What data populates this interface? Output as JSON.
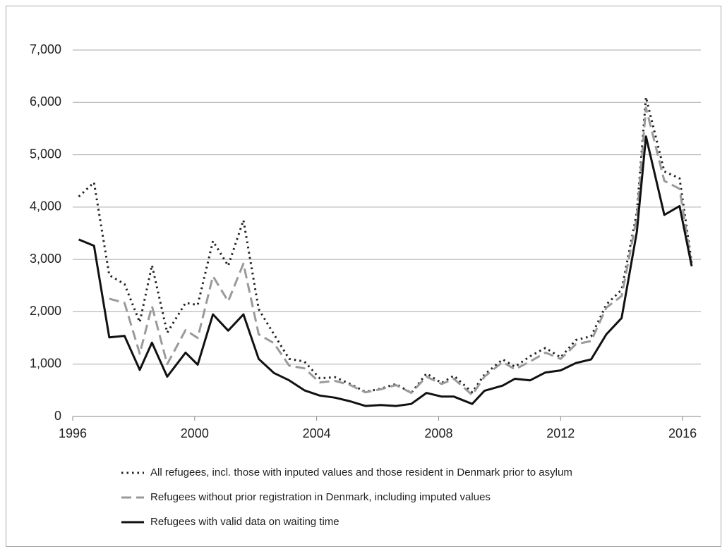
{
  "chart_data": {
    "type": "line",
    "x": [
      1996.2,
      1996.7,
      1997.2,
      1997.7,
      1998.2,
      1998.6,
      1999.1,
      1999.7,
      2000.1,
      2000.6,
      2001.1,
      2001.6,
      2002.1,
      2002.6,
      2003.1,
      2003.6,
      2004.1,
      2004.6,
      2005.1,
      2005.6,
      2006.1,
      2006.6,
      2007.1,
      2007.6,
      2008.1,
      2008.5,
      2009.1,
      2009.5,
      2010.1,
      2010.5,
      2011.0,
      2011.5,
      2012.0,
      2012.5,
      2013.0,
      2013.5,
      2014.0,
      2014.5,
      2014.8,
      2015.4,
      2015.9,
      2016.3
    ],
    "series": [
      {
        "name": "All refugees, incl. those with inputed values and those resident in Denmark prior to asylum",
        "color": "#222222",
        "dash": "dotted",
        "values": [
          4200,
          4470,
          2700,
          2530,
          1800,
          2890,
          1600,
          2170,
          2130,
          3350,
          2880,
          3750,
          2050,
          1570,
          1100,
          1050,
          730,
          750,
          620,
          470,
          530,
          620,
          450,
          820,
          640,
          780,
          460,
          800,
          1090,
          950,
          1150,
          1310,
          1130,
          1460,
          1530,
          2140,
          2420,
          3900,
          6100,
          4680,
          4550,
          2940
        ]
      },
      {
        "name": "Refugees without prior registration in Denmark, including imputed values",
        "color": "#9a9a9a",
        "dash": "dashed",
        "values": [
          null,
          null,
          2250,
          2170,
          1200,
          2110,
          1000,
          1650,
          1500,
          2680,
          2200,
          2920,
          1570,
          1400,
          970,
          920,
          650,
          680,
          600,
          460,
          520,
          600,
          450,
          760,
          620,
          720,
          410,
          760,
          1040,
          900,
          1050,
          1220,
          1100,
          1380,
          1440,
          2080,
          2300,
          3800,
          5900,
          4500,
          4350,
          2880
        ]
      },
      {
        "name": "Refugees with valid data on waiting time",
        "color": "#111111",
        "dash": "solid",
        "values": [
          3380,
          3260,
          1510,
          1540,
          890,
          1410,
          760,
          1220,
          990,
          1950,
          1640,
          1950,
          1100,
          830,
          690,
          500,
          400,
          360,
          290,
          200,
          220,
          200,
          240,
          450,
          380,
          380,
          240,
          490,
          590,
          720,
          690,
          840,
          880,
          1020,
          1090,
          1570,
          1880,
          3530,
          5350,
          3850,
          4020,
          2870
        ]
      }
    ],
    "xlim": [
      1996,
      2016.6
    ],
    "xticks": [
      1996,
      2000,
      2004,
      2008,
      2012,
      2016
    ],
    "ylim": [
      0,
      7000
    ],
    "yticks": [
      0,
      {
        "value": 1000,
        "label": "1,000"
      },
      {
        "value": 2000,
        "label": "2,000"
      },
      {
        "value": 3000,
        "label": "3,000"
      },
      {
        "value": 4000,
        "label": "4,000"
      },
      {
        "value": 5000,
        "label": "5,000"
      },
      {
        "value": 6000,
        "label": "6,000"
      },
      {
        "value": 7000,
        "label": "7,000"
      }
    ],
    "grid": true,
    "legend": "bottom"
  }
}
